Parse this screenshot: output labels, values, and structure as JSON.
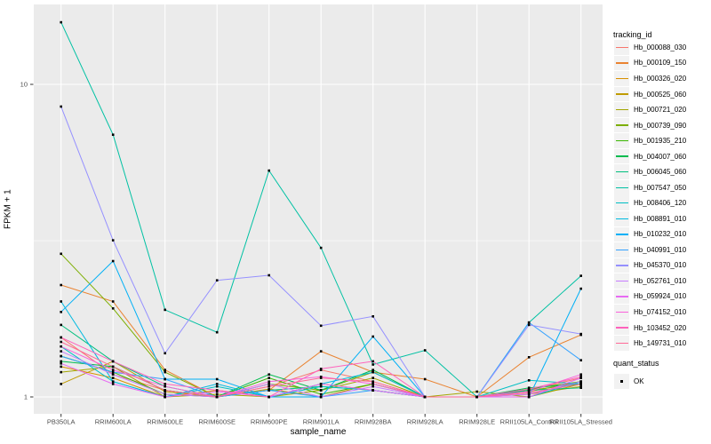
{
  "figure": {
    "y_axis": {
      "title": "FPKM + 1"
    },
    "x_axis": {
      "title": "sample_name"
    },
    "legend": {
      "tracking_title": "tracking_id",
      "quant_title": "quant_status",
      "quant_items": [
        {
          "label": "OK"
        }
      ]
    },
    "colors": {
      "panel_background": "#EBEBEB",
      "gridline": "#FFFFFF",
      "axis_text": "#4D4D4D",
      "tick_mark": "#333333",
      "marker": "#000000",
      "legend_key_background": "#F2F2F2"
    }
  },
  "chart_data": {
    "type": "line",
    "title": "",
    "xlabel": "sample_name",
    "ylabel": "FPKM + 1",
    "y_scale": "log10",
    "ylim": [
      0.92,
      18
    ],
    "grid": true,
    "legend_position": "right",
    "marker": {
      "shape": "square",
      "color": "#000000",
      "meaning": "quant_status OK"
    },
    "y_ticks": [
      {
        "label": "1",
        "value": 1
      },
      {
        "label": "10",
        "value": 10
      }
    ],
    "y_minor_gridlines": [
      3.162
    ],
    "categories": [
      "PB350LA",
      "RRIM600LA",
      "RRIM600LE",
      "RRIM600SE",
      "RRIM600PE",
      "RRIM901LA",
      "RRIM928BA",
      "RRIM928LA",
      "RRIM928LE",
      "RRII105LA_Control",
      "RRII105LA_Stressed"
    ],
    "series": [
      {
        "name": "Hb_000088_030",
        "color": "#F8766D",
        "values": [
          1.55,
          1.18,
          1.05,
          1.0,
          1.08,
          1.22,
          1.12,
          1.0,
          1.0,
          1.05,
          1.15
        ]
      },
      {
        "name": "Hb_000109_150",
        "color": "#EA8331",
        "values": [
          2.28,
          2.02,
          1.22,
          1.0,
          1.05,
          1.4,
          1.2,
          1.14,
          1.0,
          1.34,
          1.58
        ]
      },
      {
        "name": "Hb_000326_020",
        "color": "#D89000",
        "values": [
          1.25,
          1.15,
          1.0,
          1.05,
          1.0,
          1.1,
          1.05,
          1.0,
          1.0,
          1.04,
          1.12
        ]
      },
      {
        "name": "Hb_000525_060",
        "color": "#C09B00",
        "values": [
          1.1,
          1.3,
          1.04,
          1.0,
          1.06,
          1.0,
          1.1,
          1.0,
          1.0,
          1.02,
          1.08
        ]
      },
      {
        "name": "Hb_000721_020",
        "color": "#A3A500",
        "values": [
          1.2,
          1.25,
          1.0,
          1.02,
          1.0,
          1.05,
          1.15,
          1.0,
          1.04,
          1.0,
          1.1
        ]
      },
      {
        "name": "Hb_000739_090",
        "color": "#7CAE00",
        "values": [
          2.87,
          1.92,
          1.2,
          1.0,
          1.1,
          1.05,
          1.2,
          1.0,
          1.0,
          1.05,
          1.1
        ]
      },
      {
        "name": "Hb_001935_210",
        "color": "#39B600",
        "values": [
          1.35,
          1.2,
          1.02,
          1.0,
          1.15,
          1.02,
          1.1,
          1.0,
          1.0,
          1.06,
          1.12
        ]
      },
      {
        "name": "Hb_004007_060",
        "color": "#00BB4E",
        "values": [
          1.3,
          1.25,
          1.05,
          1.0,
          1.18,
          1.05,
          1.22,
          1.0,
          1.0,
          1.07,
          1.1
        ]
      },
      {
        "name": "Hb_006045_060",
        "color": "#00BF7D",
        "values": [
          1.7,
          1.3,
          1.08,
          1.0,
          1.05,
          1.08,
          1.05,
          1.0,
          1.0,
          1.05,
          1.07
        ]
      },
      {
        "name": "Hb_007547_050",
        "color": "#00C1A3",
        "values": [
          15.8,
          6.9,
          1.9,
          1.61,
          5.3,
          3.0,
          1.27,
          1.41,
          1.0,
          1.73,
          2.44
        ]
      },
      {
        "name": "Hb_008406_120",
        "color": "#00BFC4",
        "values": [
          1.45,
          1.12,
          1.0,
          1.08,
          1.0,
          1.08,
          1.05,
          1.0,
          1.0,
          1.13,
          1.1
        ]
      },
      {
        "name": "Hb_008891_010",
        "color": "#00BAE0",
        "values": [
          2.02,
          1.12,
          1.0,
          1.1,
          1.0,
          1.1,
          1.2,
          1.0,
          1.0,
          1.0,
          1.12
        ]
      },
      {
        "name": "Hb_010232_010",
        "color": "#00B0F6",
        "values": [
          1.87,
          2.72,
          1.14,
          1.14,
          1.0,
          1.0,
          1.56,
          1.0,
          1.0,
          1.0,
          2.22
        ]
      },
      {
        "name": "Hb_040991_010",
        "color": "#35A2FF",
        "values": [
          1.35,
          1.2,
          1.14,
          1.0,
          1.05,
          1.0,
          1.05,
          1.0,
          1.0,
          1.73,
          1.31
        ]
      },
      {
        "name": "Hb_045370_010",
        "color": "#9590FF",
        "values": [
          8.49,
          3.17,
          1.38,
          2.36,
          2.45,
          1.69,
          1.81,
          1.0,
          1.0,
          1.7,
          1.59
        ]
      },
      {
        "name": "Hb_052761_010",
        "color": "#C77CFF",
        "values": [
          1.4,
          1.18,
          1.02,
          1.0,
          1.1,
          1.0,
          1.08,
          1.0,
          1.0,
          1.02,
          1.12
        ]
      },
      {
        "name": "Hb_059924_010",
        "color": "#E76BF3",
        "values": [
          1.28,
          1.1,
          1.0,
          1.04,
          1.0,
          1.1,
          1.05,
          1.0,
          1.0,
          1.0,
          1.15
        ]
      },
      {
        "name": "Hb_074152_010",
        "color": "#FA62DB",
        "values": [
          1.45,
          1.22,
          1.08,
          1.0,
          1.12,
          1.16,
          1.1,
          1.0,
          1.0,
          1.04,
          1.18
        ]
      },
      {
        "name": "Hb_103452_020",
        "color": "#FF62BC",
        "values": [
          1.55,
          1.3,
          1.1,
          1.05,
          1.0,
          1.23,
          1.3,
          1.0,
          1.0,
          1.06,
          1.16
        ]
      },
      {
        "name": "Hb_149731_010",
        "color": "#FF6A98",
        "values": [
          1.5,
          1.25,
          1.05,
          1.0,
          1.08,
          1.15,
          1.12,
          1.0,
          1.0,
          1.03,
          1.1
        ]
      }
    ]
  }
}
